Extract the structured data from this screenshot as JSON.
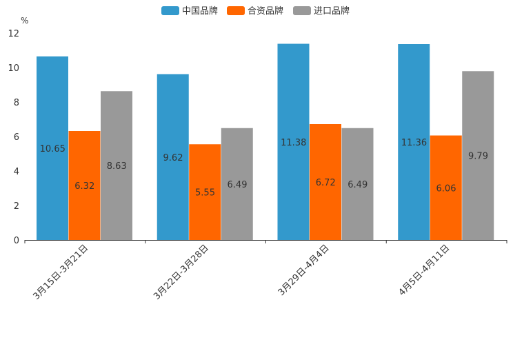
{
  "chart_data": {
    "type": "bar",
    "title": "",
    "ylabel": "%",
    "xlabel": "",
    "ylim": [
      0,
      12
    ],
    "yticks": [
      0,
      2,
      4,
      6,
      8,
      10,
      12
    ],
    "categories": [
      "3月15日-3月21日",
      "3月22日-3月28日",
      "3月29日-4月4日",
      "4月5日-4月11日"
    ],
    "series": [
      {
        "name": "中国品牌",
        "color": "#3399CC",
        "values": [
          10.65,
          9.62,
          11.38,
          11.36
        ]
      },
      {
        "name": "合资品牌",
        "color": "#FF6600",
        "values": [
          6.32,
          5.55,
          6.72,
          6.06
        ]
      },
      {
        "name": "进口品牌",
        "color": "#999999",
        "values": [
          8.63,
          6.49,
          6.49,
          9.79
        ]
      }
    ],
    "legend_position": "top-center",
    "data_labels": true
  }
}
